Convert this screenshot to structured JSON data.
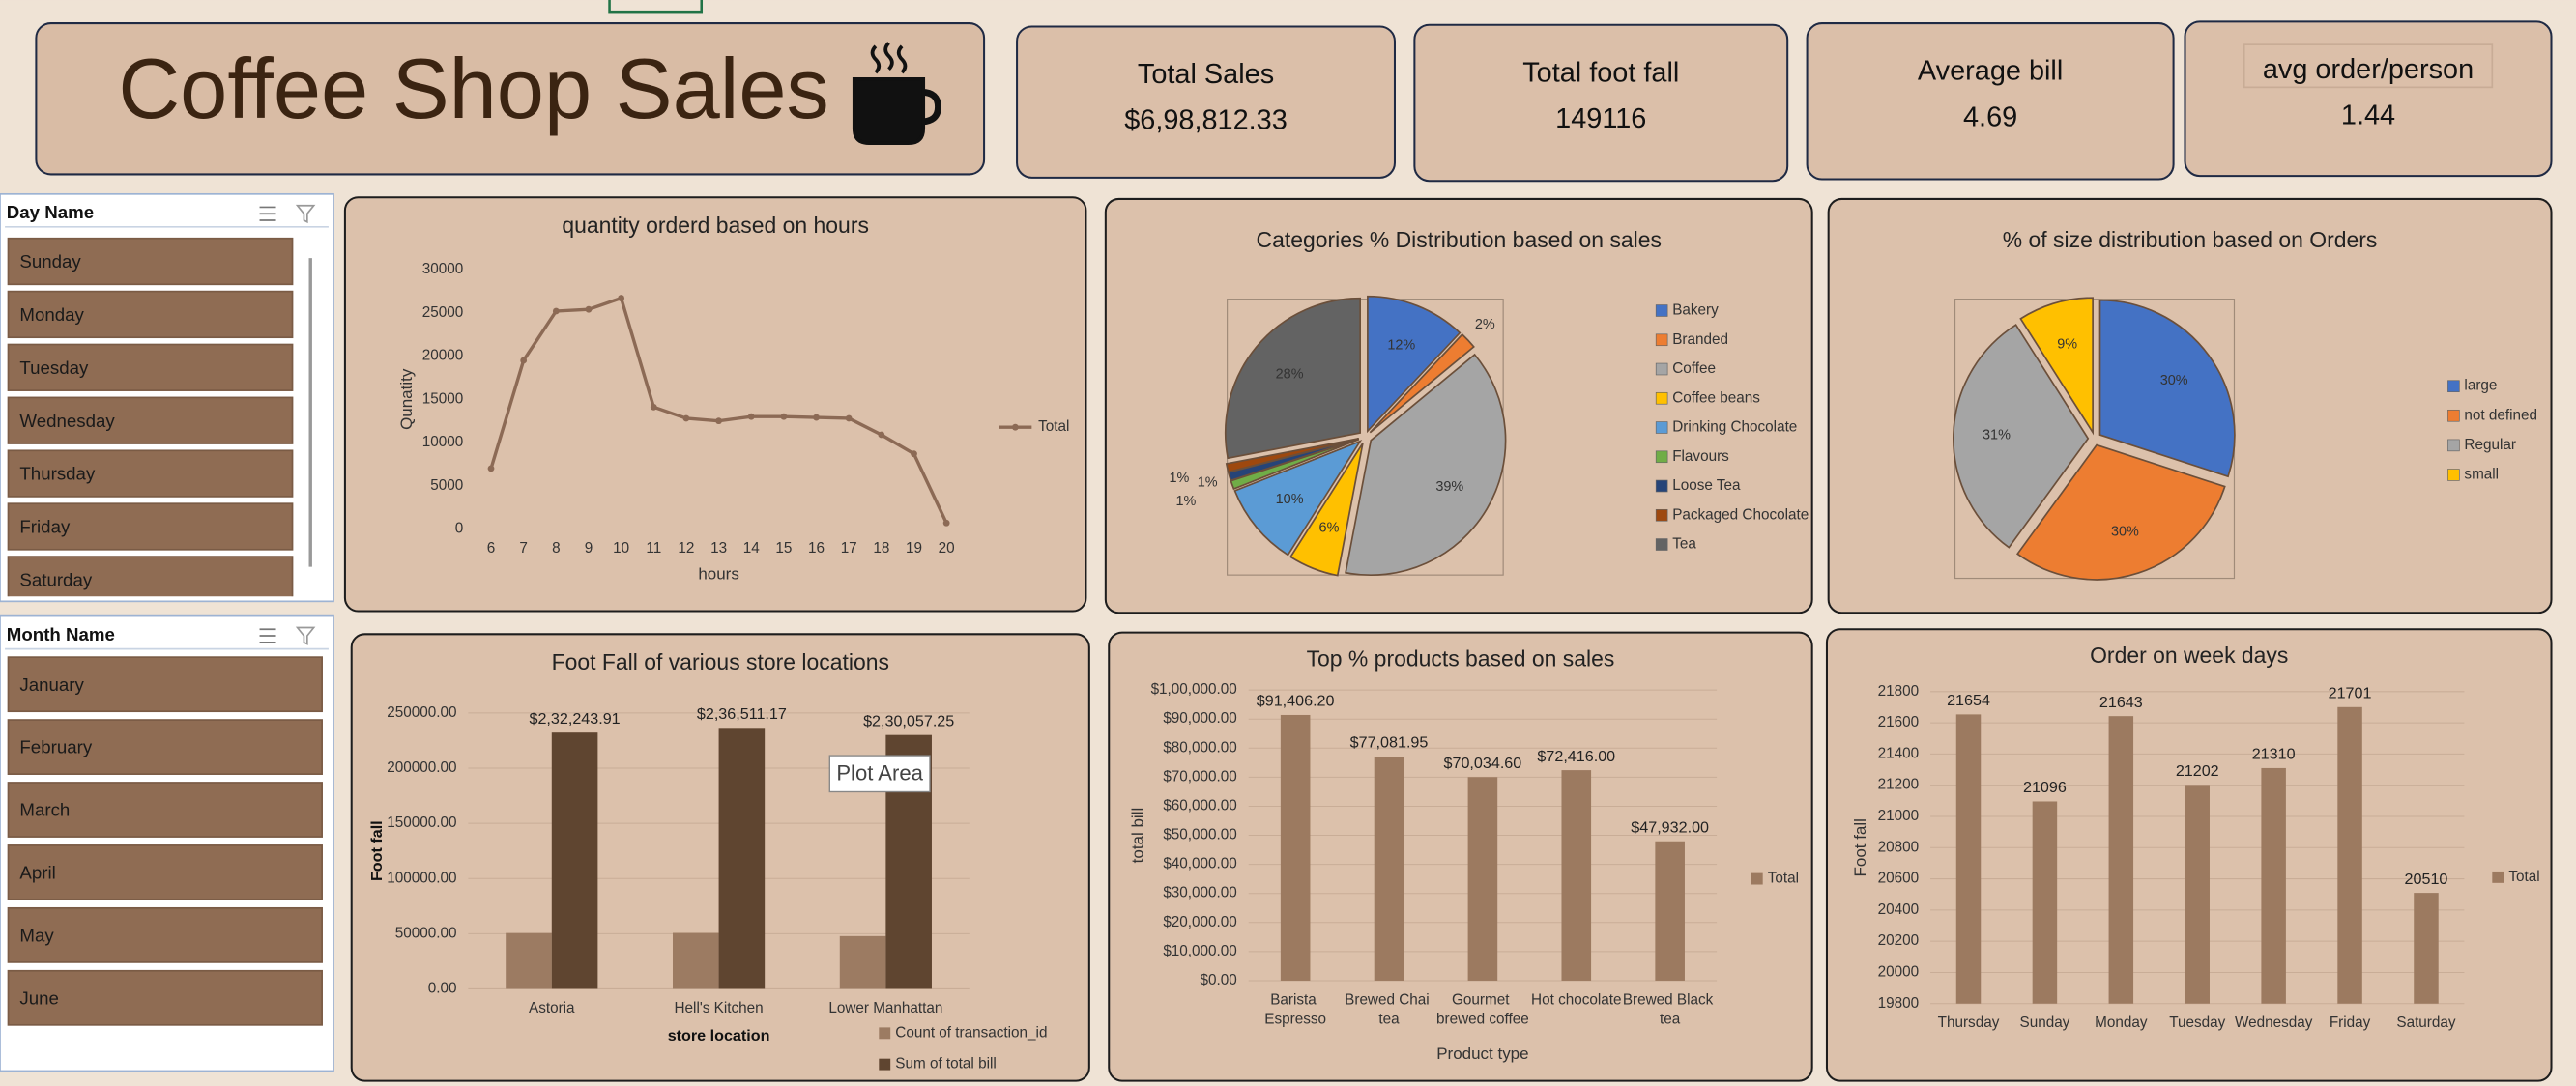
{
  "title": "Coffee Shop Sales",
  "kpis": [
    {
      "label": "Total Sales",
      "value": "$6,98,812.33"
    },
    {
      "label": "Total foot fall",
      "value": "149116"
    },
    {
      "label": "Average bill",
      "value": "4.69"
    },
    {
      "label": "avg order/person",
      "value": "1.44"
    }
  ],
  "slicers": [
    {
      "title": "Day Name",
      "items": [
        "Sunday",
        "Monday",
        "Tuesday",
        "Wednesday",
        "Thursday",
        "Friday",
        "Saturday"
      ]
    },
    {
      "title": "Month Name",
      "items": [
        "January",
        "February",
        "March",
        "April",
        "May",
        "June"
      ]
    }
  ],
  "tooltip": "Plot Area",
  "chart_data": [
    {
      "type": "line",
      "title": "quantity orderd based on hours",
      "xlabel": "hours",
      "ylabel": "Qunatity",
      "x": [
        6,
        7,
        8,
        9,
        10,
        11,
        12,
        13,
        14,
        15,
        16,
        17,
        18,
        19,
        20
      ],
      "series": [
        {
          "name": "Total",
          "color": "#8c6a55",
          "values": [
            7000,
            19500,
            25200,
            25400,
            26700,
            14100,
            12800,
            12500,
            13000,
            13000,
            12900,
            12800,
            10900,
            8700,
            700
          ]
        }
      ],
      "xlim": [
        5.5,
        20.5
      ],
      "xticks": [
        6,
        7,
        8,
        9,
        10,
        11,
        12,
        13,
        14,
        15,
        16,
        17,
        18,
        19,
        20
      ],
      "ylim": [
        0,
        30000
      ],
      "yticks": [
        0,
        5000,
        10000,
        15000,
        20000,
        25000,
        30000
      ],
      "grid": false,
      "legend": "right"
    },
    {
      "type": "pie",
      "title": "Categories % Distribution based on sales",
      "categories": [
        "Bakery",
        "Branded",
        "Coffee",
        "Coffee beans",
        "Drinking Chocolate",
        "Flavours",
        "Loose Tea",
        "Packaged Chocolate",
        "Tea"
      ],
      "values": [
        12,
        2,
        39,
        6,
        10,
        1,
        1,
        1,
        28
      ],
      "value_labels": [
        "12%",
        "2%",
        "39%",
        "6%",
        "10%",
        "1%",
        "1%",
        "1%",
        "28%"
      ],
      "colors": [
        "#4472c4",
        "#ed7d31",
        "#a5a5a5",
        "#ffc000",
        "#5b9bd5",
        "#70ad47",
        "#264478",
        "#9e480e",
        "#636363"
      ],
      "legend": "right"
    },
    {
      "type": "pie",
      "title": "% of size distribution based on Orders",
      "categories": [
        "large",
        "not defined",
        "Regular",
        "small"
      ],
      "values": [
        30,
        30,
        31,
        9
      ],
      "value_labels": [
        "30%",
        "30%",
        "31%",
        "9%"
      ],
      "colors": [
        "#4472c4",
        "#ed7d31",
        "#a5a5a5",
        "#ffc000"
      ],
      "legend": "right"
    },
    {
      "type": "bar",
      "title": "Foot Fall of various store locations",
      "xlabel": "store location",
      "ylabel": "Foot fall",
      "categories": [
        "Astoria",
        "Hell's Kitchen",
        "Lower Manhattan"
      ],
      "series": [
        {
          "name": "Count of transaction_id",
          "color": "#9c7b62",
          "values": [
            50600,
            50700,
            47800
          ]
        },
        {
          "name": "Sum of total bill",
          "color": "#5f4530",
          "values": [
            232243.91,
            236511.17,
            230057.25
          ],
          "value_labels": [
            "$2,32,243.91",
            "$2,36,511.17",
            "$2,30,057.25"
          ]
        }
      ],
      "ylim": [
        0,
        250000
      ],
      "yticks": [
        {
          "value": 0,
          "label": "0.00"
        },
        {
          "value": 50000,
          "label": "50000.00"
        },
        {
          "value": 100000,
          "label": "100000.00"
        },
        {
          "value": 150000,
          "label": "150000.00"
        },
        {
          "value": 200000,
          "label": "200000.00"
        },
        {
          "value": 250000,
          "label": "250000.00"
        }
      ],
      "grid": true,
      "legend": "bottom"
    },
    {
      "type": "bar",
      "title": "Top % products based on sales",
      "xlabel": "Product type",
      "ylabel": "total bill",
      "categories": [
        "Barista Espresso",
        "Brewed Chai tea",
        "Gourmet brewed coffee",
        "Hot chocolate",
        "Brewed Black tea"
      ],
      "series": [
        {
          "name": "Total",
          "color": "#9c7a60",
          "values": [
            91406.2,
            77081.95,
            70034.6,
            72416.0,
            47932.0
          ],
          "value_labels": [
            "$91,406.20",
            "$77,081.95",
            "$70,034.60",
            "$72,416.00",
            "$47,932.00"
          ]
        }
      ],
      "ylim": [
        0,
        100000
      ],
      "yticks": [
        {
          "value": 0,
          "label": "$0.00"
        },
        {
          "value": 10000,
          "label": "$10,000.00"
        },
        {
          "value": 20000,
          "label": "$20,000.00"
        },
        {
          "value": 30000,
          "label": "$30,000.00"
        },
        {
          "value": 40000,
          "label": "$40,000.00"
        },
        {
          "value": 50000,
          "label": "$50,000.00"
        },
        {
          "value": 60000,
          "label": "$60,000.00"
        },
        {
          "value": 70000,
          "label": "$70,000.00"
        },
        {
          "value": 80000,
          "label": "$80,000.00"
        },
        {
          "value": 90000,
          "label": "$90,000.00"
        },
        {
          "value": 100000,
          "label": "$1,00,000.00"
        }
      ],
      "grid": true,
      "legend": "right"
    },
    {
      "type": "bar",
      "title": "Order on week days",
      "ylabel": "Foot fall",
      "categories": [
        "Thursday",
        "Sunday",
        "Monday",
        "Tuesday",
        "Wednesday",
        "Friday",
        "Saturday"
      ],
      "series": [
        {
          "name": "Total",
          "color": "#9c7a60",
          "values": [
            21654,
            21096,
            21643,
            21202,
            21310,
            21701,
            20510
          ]
        }
      ],
      "data_labels": true,
      "ylim": [
        19800,
        21800
      ],
      "yticks": [
        19800,
        20000,
        20200,
        20400,
        20600,
        20800,
        21000,
        21200,
        21400,
        21600,
        21800
      ],
      "grid": true,
      "legend": "right"
    }
  ]
}
